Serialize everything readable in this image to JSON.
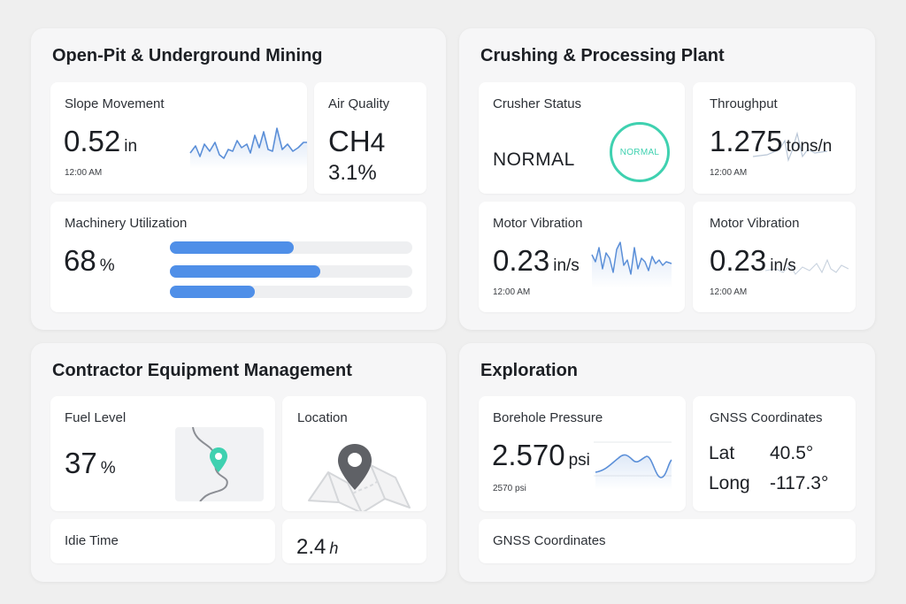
{
  "mining": {
    "title": "Open-Pit & Underground Mining",
    "slope": {
      "label": "Slope Movement",
      "value": "0.52",
      "unit": "in",
      "time": "12:00 AM"
    },
    "air": {
      "label": "Air Quality",
      "gas": "CH",
      "gas_sub": "4",
      "value": "3.1%"
    },
    "machinery": {
      "label": "Machinery Utilization",
      "value": "68",
      "unit": "%",
      "bars": [
        0.51,
        0.62,
        0.35
      ]
    }
  },
  "plant": {
    "title": "Crushing & Processing Plant",
    "crusher": {
      "label": "Crusher Status",
      "status": "NORMAL",
      "ring_label": "NORMAL"
    },
    "throughput": {
      "label": "Throughput",
      "value": "1.275",
      "unit": "tons/n",
      "time": "12:00 AM"
    },
    "vibration1": {
      "label": "Motor Vibration",
      "value": "0.23",
      "unit": "in/s",
      "time": "12:00 AM"
    },
    "vibration2": {
      "label": "Motor Vibration",
      "value": "0.23",
      "unit": "in/s",
      "time": "12:00 AM"
    }
  },
  "contractor": {
    "title": "Contractor Equipment Management",
    "fuel": {
      "label": "Fuel Level",
      "value": "37",
      "unit": "%"
    },
    "location": {
      "label": "Location"
    },
    "idle": {
      "label": "Idie Time",
      "value": "2.4",
      "unit": "h"
    }
  },
  "exploration": {
    "title": "Exploration",
    "borehole": {
      "label": "Borehole Pressure",
      "value": "2.570",
      "unit": "psi",
      "sub": "2570 psi"
    },
    "gnss": {
      "label": "GNSS Coordinates",
      "lat_label": "Lat",
      "lat_value": "40.5°",
      "long_label": "Long",
      "long_value": "-117.3°"
    },
    "gnss_footer": {
      "label": "GNSS Coordinates"
    }
  },
  "colors": {
    "accent_blue": "#4f8fe8",
    "spark_blue": "#5b8fd8",
    "status_teal": "#3fd1b0",
    "pin_gray": "#5f6166"
  }
}
